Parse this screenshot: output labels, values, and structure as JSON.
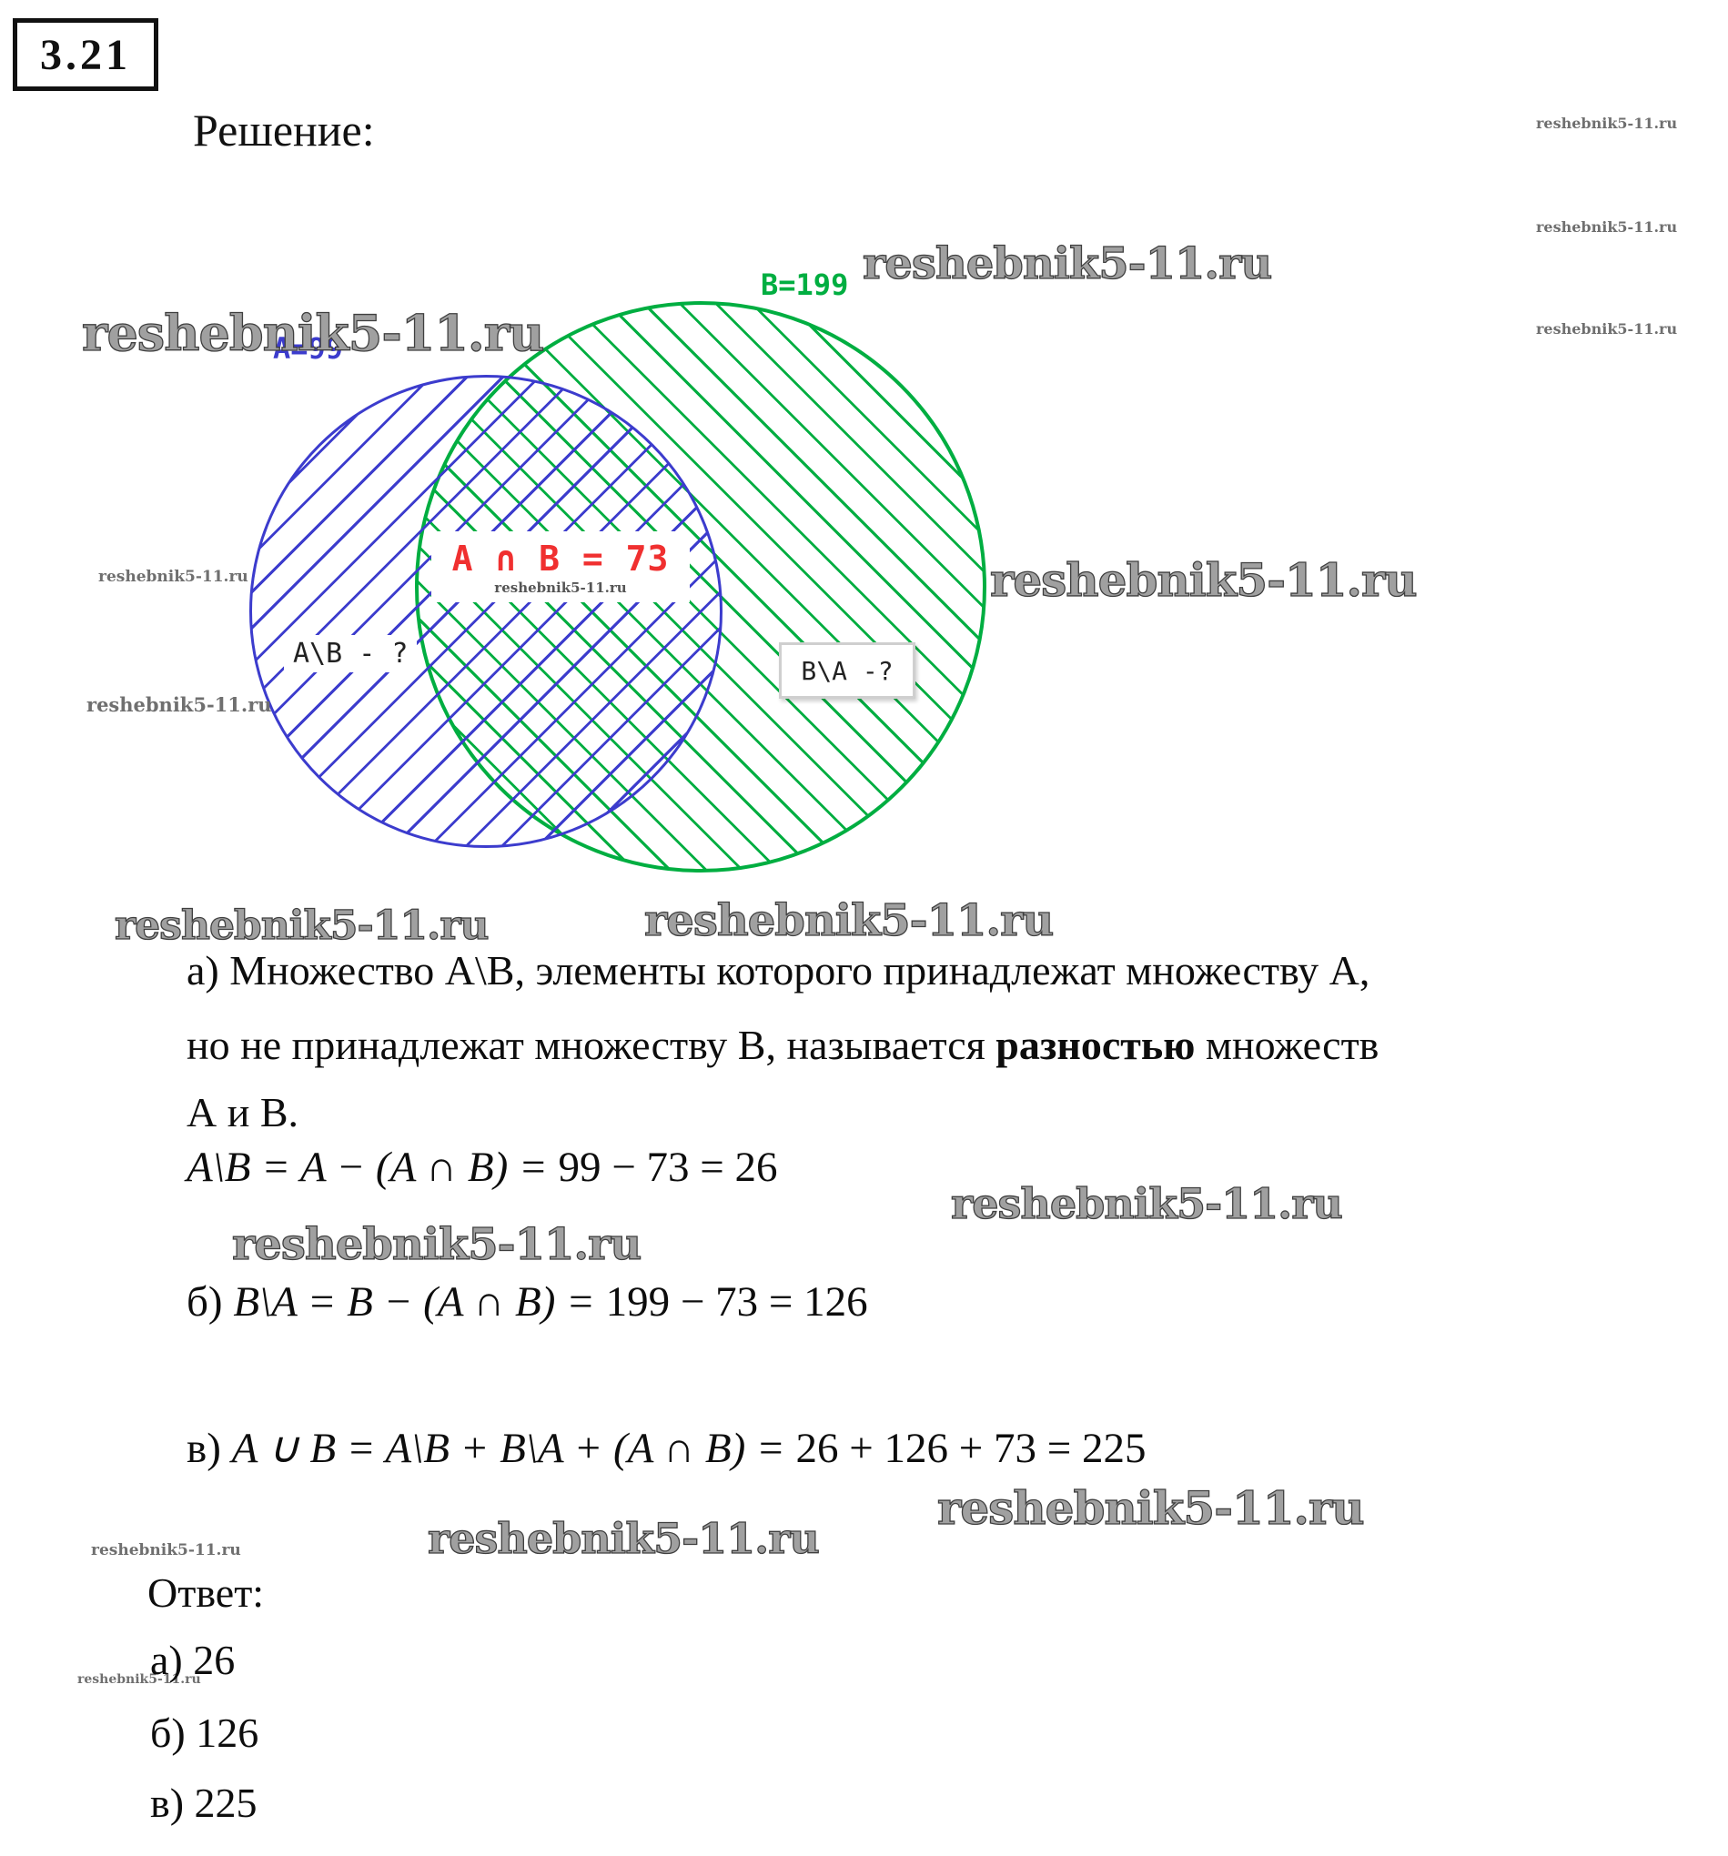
{
  "badge": "3.21",
  "solution_heading": "Решение:",
  "watermark": {
    "text": "reshebnik5-11.ru"
  },
  "diagram": {
    "label_a": "A=99",
    "label_b": "B=199",
    "intersection_label": "A ∩ B = 73",
    "left_region_label": "A\\B - ?",
    "right_region_label": "B\\A -?",
    "colors": {
      "circle_a": "#3c3ccd",
      "circle_b": "#00ae41",
      "intersection_text": "#f03030"
    }
  },
  "solution": {
    "para_line1": "а) Множество А\\В, элементы которого принадлежат множеству А,",
    "para_line2_pre": "но не принадлежат множеству В, называется ",
    "para_line2_bold": "разностью",
    "para_line2_post": " множеств",
    "para_line3": "А и В.",
    "formula_a_math": "A\\B = A − (A ∩ B) = ",
    "formula_a_nums": "99 − 73 = 26",
    "formula_b_prefix": "б) ",
    "formula_b_math": "B\\A = B − (A ∩ B) = ",
    "formula_b_nums": "199 − 73 = 126",
    "formula_v_prefix": "в) ",
    "formula_v_math": "A ∪ B = A\\B + B\\A + (A ∩ B) = ",
    "formula_v_nums": "26 + 126 + 73 = 225"
  },
  "answer": {
    "heading": "Ответ:",
    "items": [
      "а) 26",
      "б) 126",
      "в) 225"
    ]
  }
}
